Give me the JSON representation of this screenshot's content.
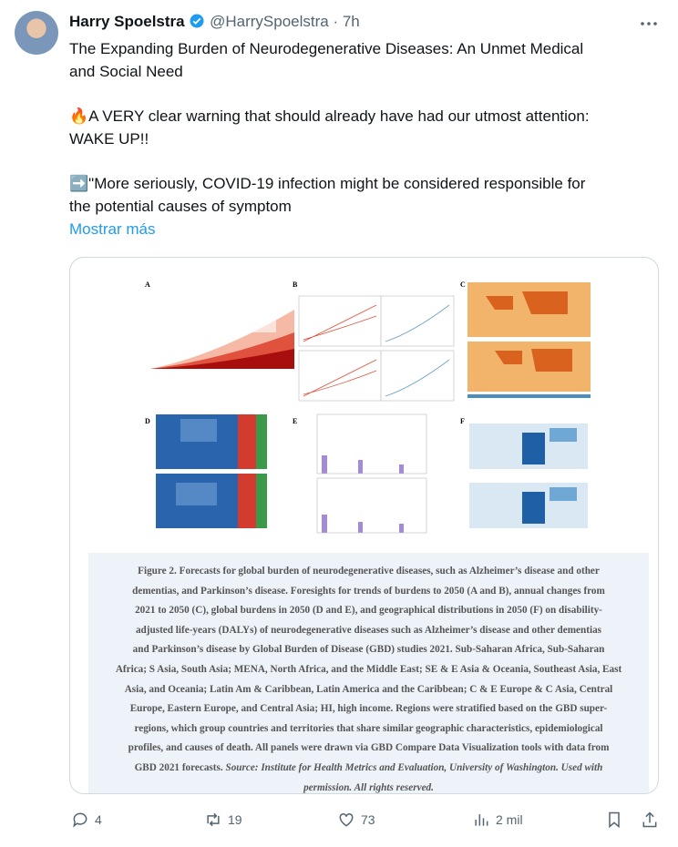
{
  "author": {
    "name": "Harry Spoelstra",
    "handle": "@HarrySpoelstra",
    "time": "· 7h"
  },
  "tweet": {
    "paragraphs": [
      [
        "The Expanding Burden of Neurodegenerative Diseases: An Unmet Medical",
        "and Social Need"
      ],
      [
        "🔥A VERY clear warning that should already have had our utmost attention:",
        "WAKE UP!!"
      ],
      [
        "➡️\"More seriously, COVID-19 infection might be considered responsible for",
        "the potential causes of symptom"
      ]
    ],
    "show_more": "Mostrar más"
  },
  "figure": {
    "panels": [
      "A",
      "B",
      "C",
      "D",
      "E",
      "F"
    ],
    "caption_lines": [
      "Figure 2. Forecasts for global burden of neurodegenerative diseases, such as Alzheimer’s disease and other",
      "dementias, and Parkinson’s disease. Foresights for trends of burdens to 2050 (A and B), annual changes from",
      "2021 to 2050 (C), global burdens in 2050 (D and E), and geographical distributions in 2050 (F) on disability-",
      "adjusted life-years (DALYs) of neurodegenerative diseases such as Alzheimer’s disease and other dementias",
      "and Parkinson’s disease by Global Burden of Disease (GBD) studies 2021. Sub-Saharan Africa, Sub-Saharan",
      "Africa; S Asia, South Asia; MENA, North Africa, and the Middle East; SE & E Asia & Oceania, Southeast Asia, East",
      "Asia, and Oceania; Latin Am & Caribbean, Latin America and the Caribbean; C & E Europe & C Asia, Central",
      "Europe, Eastern Europe, and Central Asia; HI, high income. Regions were stratified based on the GBD super-",
      "regions, which group countries and territories that share similar geographic characteristics, epidemiological",
      "profiles, and causes of death. All panels were drawn via GBD Compare Data Visualization tools with data from",
      "GBD 2021 forecasts."
    ],
    "source_lines": [
      "Source: Institute for Health Metrics and Evaluation, University of Washington. Used with",
      "permission. All rights reserved."
    ]
  },
  "actions": {
    "replies": 4,
    "reposts": 19,
    "likes": 73,
    "views": "2 mil"
  }
}
